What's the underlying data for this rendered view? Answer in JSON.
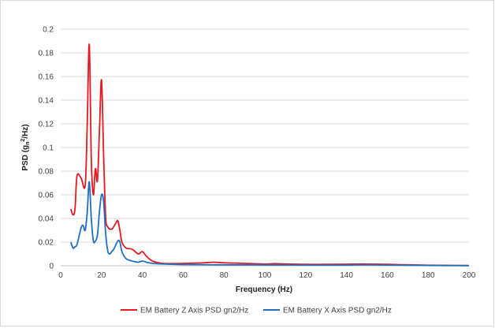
{
  "chart_data": {
    "type": "line",
    "title": "",
    "xlabel": "Frequency (Hz)",
    "ylabel_parts": {
      "before": "PSD (g",
      "sub": "n",
      "sup": "2",
      "after": "/Hz)"
    },
    "xlim": [
      0,
      200
    ],
    "ylim": [
      0,
      0.2
    ],
    "x_ticks": [
      "0",
      "20",
      "40",
      "60",
      "80",
      "100",
      "120",
      "140",
      "160",
      "180",
      "200"
    ],
    "y_ticks": [
      "0",
      "0.02",
      "0.04",
      "0.06",
      "0.08",
      "0.1",
      "0.12",
      "0.14",
      "0.16",
      "0.18",
      "0.2"
    ],
    "grid": "horizontal",
    "legend_position": "bottom",
    "series": [
      {
        "name": "EM Battery Z Axis PSD gn2/Hz",
        "color": "#e8171f",
        "x": [
          5,
          6,
          7,
          8,
          10,
          12,
          13,
          14,
          15,
          16,
          17,
          18,
          19,
          20,
          21,
          22,
          23,
          25,
          27,
          28,
          29,
          30,
          32,
          35,
          38,
          40,
          42,
          45,
          50,
          60,
          70,
          75,
          80,
          90,
          100,
          105,
          110,
          120,
          130,
          140,
          148,
          160,
          170,
          180,
          190,
          200
        ],
        "y": [
          0.048,
          0.043,
          0.048,
          0.076,
          0.074,
          0.068,
          0.12,
          0.187,
          0.09,
          0.06,
          0.082,
          0.072,
          0.115,
          0.157,
          0.095,
          0.042,
          0.033,
          0.031,
          0.036,
          0.038,
          0.03,
          0.02,
          0.015,
          0.014,
          0.01,
          0.012,
          0.008,
          0.004,
          0.002,
          0.002,
          0.0025,
          0.003,
          0.0025,
          0.002,
          0.0015,
          0.0018,
          0.0015,
          0.0012,
          0.0012,
          0.0013,
          0.0015,
          0.0012,
          0.0008,
          0.0005,
          0.0003,
          0.0002
        ]
      },
      {
        "name": "EM Battery X Axis PSD gn2/Hz",
        "color": "#1f6fc1",
        "x": [
          5,
          6,
          7,
          8,
          10,
          11,
          12,
          13,
          14,
          15,
          16,
          17,
          18,
          19,
          20,
          21,
          22,
          23,
          24,
          25,
          26,
          28,
          29,
          30,
          32,
          35,
          38,
          40,
          42,
          45,
          50,
          60,
          80,
          100,
          120,
          140,
          148,
          160,
          180,
          200
        ],
        "y": [
          0.02,
          0.015,
          0.016,
          0.018,
          0.032,
          0.034,
          0.03,
          0.045,
          0.071,
          0.04,
          0.021,
          0.021,
          0.026,
          0.046,
          0.06,
          0.055,
          0.028,
          0.013,
          0.01,
          0.012,
          0.014,
          0.021,
          0.02,
          0.012,
          0.006,
          0.004,
          0.003,
          0.004,
          0.003,
          0.002,
          0.0015,
          0.001,
          0.0008,
          0.0007,
          0.0006,
          0.0006,
          0.0008,
          0.0006,
          0.0003,
          0.0001
        ]
      }
    ]
  }
}
